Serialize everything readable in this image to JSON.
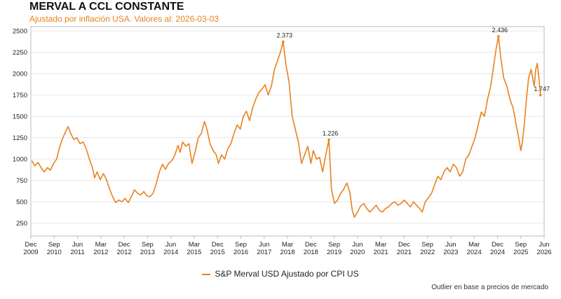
{
  "title": "MERVAL A CCL CONSTANTE",
  "subtitle": "Ajustado por inflación USA. Valores al: 2026-03-03",
  "note": "Outlier en base a precios de mercado",
  "colors": {
    "accent": "#e8821e",
    "grid": "#e6e6e6",
    "axis": "#bbbbbb"
  },
  "chart_data": {
    "type": "line",
    "title": "MERVAL A CCL CONSTANTE",
    "xlabel": "",
    "ylabel": "",
    "xlim": [
      2009.92,
      2026.42
    ],
    "ylim": [
      100,
      2550
    ],
    "yticks": [
      250,
      500,
      750,
      1000,
      1250,
      1500,
      1750,
      2000,
      2250,
      2500
    ],
    "xticks": [
      {
        "x": 2009.92,
        "label": "Dec 2009"
      },
      {
        "x": 2010.67,
        "label": "Sep 2010"
      },
      {
        "x": 2011.42,
        "label": "Jun 2011"
      },
      {
        "x": 2012.17,
        "label": "Mar 2012"
      },
      {
        "x": 2012.92,
        "label": "Dec 2012"
      },
      {
        "x": 2013.67,
        "label": "Sep 2013"
      },
      {
        "x": 2014.42,
        "label": "Jun 2014"
      },
      {
        "x": 2015.17,
        "label": "Mar 2015"
      },
      {
        "x": 2015.92,
        "label": "Dec 2015"
      },
      {
        "x": 2016.67,
        "label": "Sep 2016"
      },
      {
        "x": 2017.42,
        "label": "Jun 2017"
      },
      {
        "x": 2018.17,
        "label": "Mar 2018"
      },
      {
        "x": 2018.92,
        "label": "Dec 2018"
      },
      {
        "x": 2019.67,
        "label": "Sep 2019"
      },
      {
        "x": 2020.42,
        "label": "Jun 2020"
      },
      {
        "x": 2021.17,
        "label": "Mar 2021"
      },
      {
        "x": 2021.92,
        "label": "Dec 2021"
      },
      {
        "x": 2022.67,
        "label": "Sep 2022"
      },
      {
        "x": 2023.42,
        "label": "Jun 2023"
      },
      {
        "x": 2024.17,
        "label": "Mar 2024"
      },
      {
        "x": 2024.92,
        "label": "Dec 2024"
      },
      {
        "x": 2025.67,
        "label": "Sep 2025"
      },
      {
        "x": 2026.42,
        "label": "Jun 2026"
      }
    ],
    "grid": true,
    "legend_position": "bottom-center",
    "series": [
      {
        "name": "S&P Merval USD Ajustado por CPI US",
        "color": "#e8821e",
        "points": [
          [
            2009.95,
            980
          ],
          [
            2010.05,
            920
          ],
          [
            2010.15,
            960
          ],
          [
            2010.25,
            900
          ],
          [
            2010.35,
            850
          ],
          [
            2010.45,
            900
          ],
          [
            2010.55,
            870
          ],
          [
            2010.65,
            950
          ],
          [
            2010.75,
            1000
          ],
          [
            2010.85,
            1150
          ],
          [
            2010.95,
            1250
          ],
          [
            2011.05,
            1330
          ],
          [
            2011.12,
            1380
          ],
          [
            2011.2,
            1300
          ],
          [
            2011.3,
            1230
          ],
          [
            2011.4,
            1250
          ],
          [
            2011.5,
            1180
          ],
          [
            2011.6,
            1200
          ],
          [
            2011.7,
            1120
          ],
          [
            2011.8,
            1000
          ],
          [
            2011.9,
            900
          ],
          [
            2011.97,
            780
          ],
          [
            2012.05,
            850
          ],
          [
            2012.15,
            760
          ],
          [
            2012.25,
            830
          ],
          [
            2012.35,
            760
          ],
          [
            2012.45,
            650
          ],
          [
            2012.55,
            560
          ],
          [
            2012.65,
            490
          ],
          [
            2012.75,
            520
          ],
          [
            2012.85,
            500
          ],
          [
            2012.95,
            540
          ],
          [
            2013.05,
            490
          ],
          [
            2013.15,
            560
          ],
          [
            2013.25,
            640
          ],
          [
            2013.35,
            600
          ],
          [
            2013.45,
            580
          ],
          [
            2013.55,
            620
          ],
          [
            2013.65,
            570
          ],
          [
            2013.75,
            560
          ],
          [
            2013.85,
            600
          ],
          [
            2013.95,
            710
          ],
          [
            2014.05,
            850
          ],
          [
            2014.15,
            940
          ],
          [
            2014.25,
            880
          ],
          [
            2014.35,
            950
          ],
          [
            2014.45,
            980
          ],
          [
            2014.55,
            1050
          ],
          [
            2014.65,
            1160
          ],
          [
            2014.72,
            1080
          ],
          [
            2014.8,
            1200
          ],
          [
            2014.9,
            1150
          ],
          [
            2015.0,
            1180
          ],
          [
            2015.1,
            950
          ],
          [
            2015.2,
            1080
          ],
          [
            2015.3,
            1250
          ],
          [
            2015.4,
            1300
          ],
          [
            2015.5,
            1440
          ],
          [
            2015.58,
            1350
          ],
          [
            2015.68,
            1180
          ],
          [
            2015.78,
            1100
          ],
          [
            2015.88,
            1050
          ],
          [
            2015.95,
            950
          ],
          [
            2016.05,
            1050
          ],
          [
            2016.15,
            1000
          ],
          [
            2016.25,
            1120
          ],
          [
            2016.35,
            1180
          ],
          [
            2016.45,
            1300
          ],
          [
            2016.55,
            1400
          ],
          [
            2016.65,
            1350
          ],
          [
            2016.75,
            1500
          ],
          [
            2016.85,
            1560
          ],
          [
            2016.95,
            1450
          ],
          [
            2017.05,
            1600
          ],
          [
            2017.15,
            1700
          ],
          [
            2017.25,
            1780
          ],
          [
            2017.35,
            1820
          ],
          [
            2017.45,
            1870
          ],
          [
            2017.55,
            1750
          ],
          [
            2017.65,
            1850
          ],
          [
            2017.75,
            2050
          ],
          [
            2017.85,
            2150
          ],
          [
            2017.95,
            2260
          ],
          [
            2018.03,
            2373
          ],
          [
            2018.12,
            2100
          ],
          [
            2018.22,
            1900
          ],
          [
            2018.32,
            1500
          ],
          [
            2018.42,
            1350
          ],
          [
            2018.52,
            1200
          ],
          [
            2018.62,
            950
          ],
          [
            2018.72,
            1050
          ],
          [
            2018.82,
            1150
          ],
          [
            2018.92,
            950
          ],
          [
            2019.0,
            1100
          ],
          [
            2019.1,
            1000
          ],
          [
            2019.2,
            1020
          ],
          [
            2019.3,
            850
          ],
          [
            2019.4,
            1050
          ],
          [
            2019.5,
            1226
          ],
          [
            2019.58,
            650
          ],
          [
            2019.68,
            480
          ],
          [
            2019.78,
            520
          ],
          [
            2019.88,
            600
          ],
          [
            2019.98,
            650
          ],
          [
            2020.08,
            720
          ],
          [
            2020.18,
            600
          ],
          [
            2020.25,
            400
          ],
          [
            2020.32,
            320
          ],
          [
            2020.42,
            380
          ],
          [
            2020.52,
            450
          ],
          [
            2020.62,
            480
          ],
          [
            2020.72,
            420
          ],
          [
            2020.82,
            380
          ],
          [
            2020.92,
            420
          ],
          [
            2021.02,
            460
          ],
          [
            2021.12,
            400
          ],
          [
            2021.22,
            380
          ],
          [
            2021.32,
            420
          ],
          [
            2021.42,
            440
          ],
          [
            2021.52,
            480
          ],
          [
            2021.62,
            500
          ],
          [
            2021.72,
            460
          ],
          [
            2021.82,
            480
          ],
          [
            2021.92,
            520
          ],
          [
            2022.02,
            480
          ],
          [
            2022.12,
            440
          ],
          [
            2022.22,
            500
          ],
          [
            2022.32,
            460
          ],
          [
            2022.42,
            420
          ],
          [
            2022.5,
            380
          ],
          [
            2022.6,
            500
          ],
          [
            2022.7,
            550
          ],
          [
            2022.8,
            600
          ],
          [
            2022.9,
            700
          ],
          [
            2023.0,
            800
          ],
          [
            2023.1,
            760
          ],
          [
            2023.2,
            850
          ],
          [
            2023.3,
            900
          ],
          [
            2023.4,
            850
          ],
          [
            2023.5,
            940
          ],
          [
            2023.6,
            900
          ],
          [
            2023.7,
            800
          ],
          [
            2023.8,
            850
          ],
          [
            2023.9,
            1000
          ],
          [
            2024.0,
            1050
          ],
          [
            2024.1,
            1150
          ],
          [
            2024.2,
            1250
          ],
          [
            2024.3,
            1400
          ],
          [
            2024.4,
            1550
          ],
          [
            2024.5,
            1500
          ],
          [
            2024.6,
            1700
          ],
          [
            2024.7,
            1850
          ],
          [
            2024.8,
            2100
          ],
          [
            2024.88,
            2300
          ],
          [
            2024.95,
            2436
          ],
          [
            2025.02,
            2200
          ],
          [
            2025.12,
            1950
          ],
          [
            2025.22,
            1850
          ],
          [
            2025.32,
            1700
          ],
          [
            2025.42,
            1600
          ],
          [
            2025.52,
            1400
          ],
          [
            2025.6,
            1250
          ],
          [
            2025.67,
            1100
          ],
          [
            2025.72,
            1200
          ],
          [
            2025.78,
            1400
          ],
          [
            2025.85,
            1700
          ],
          [
            2025.92,
            1950
          ],
          [
            2026.0,
            2050
          ],
          [
            2026.05,
            1950
          ],
          [
            2026.1,
            1850
          ],
          [
            2026.15,
            2050
          ],
          [
            2026.2,
            2120
          ],
          [
            2026.25,
            1950
          ],
          [
            2026.3,
            1747
          ]
        ],
        "annotations": [
          {
            "x": 2018.03,
            "y": 2373,
            "label": "2.373"
          },
          {
            "x": 2019.5,
            "y": 1226,
            "label": "1.226"
          },
          {
            "x": 2024.95,
            "y": 2436,
            "label": "2.436"
          },
          {
            "x": 2026.3,
            "y": 1747,
            "label": "1.747"
          }
        ]
      }
    ]
  }
}
